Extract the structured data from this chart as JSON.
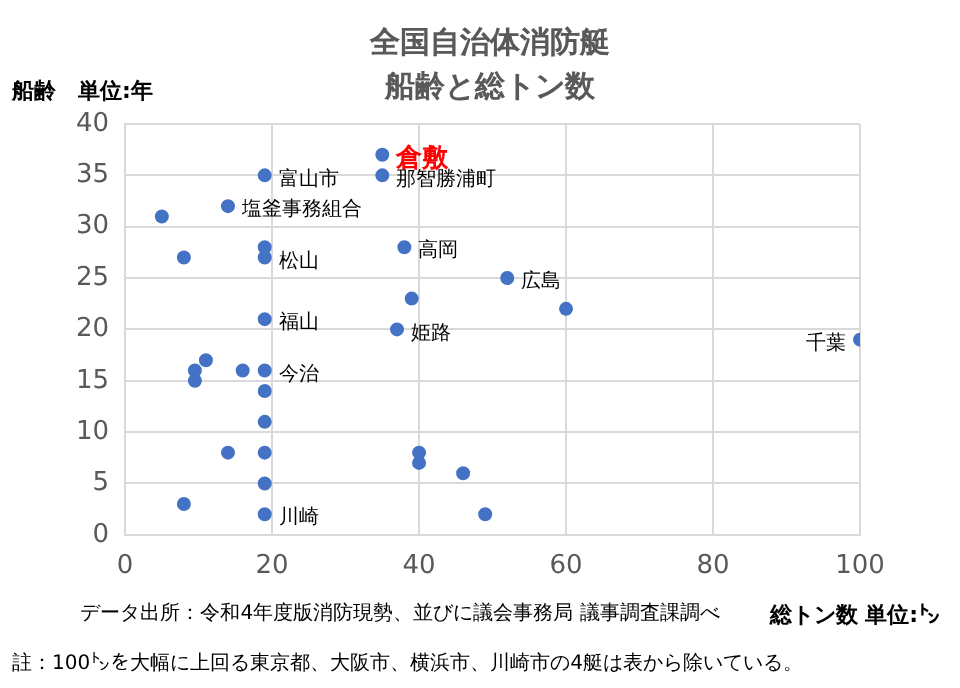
{
  "chart_data": {
    "type": "scatter",
    "title": "全国自治体消防艇",
    "subtitle": "船齢と総トン数",
    "xlabel": "総トン数 単位:㌧",
    "ylabel": "船齢　単位:年",
    "x": [
      5,
      8,
      14,
      19,
      19,
      19,
      19,
      19,
      19,
      19,
      19,
      19,
      19,
      11,
      9.5,
      9.5,
      16,
      14,
      8,
      35,
      35,
      38,
      39,
      37,
      40,
      40,
      46,
      49,
      52,
      60,
      100
    ],
    "series": [
      {
        "color": "#4472c4",
        "values": [
          31,
          27,
          32,
          35,
          28,
          27,
          21,
          16,
          14,
          11,
          8,
          5,
          2,
          17,
          16,
          15,
          16,
          8,
          3,
          37,
          35,
          28,
          23,
          20,
          8,
          7,
          6,
          2,
          25,
          22,
          19
        ]
      }
    ],
    "xlim": [
      0,
      100
    ],
    "xticks": [
      0,
      20,
      40,
      60,
      80,
      100
    ],
    "ylim": [
      0,
      40
    ],
    "yticks": [
      0,
      5,
      10,
      15,
      20,
      25,
      30,
      35,
      40
    ],
    "grid": true,
    "legend": false,
    "marker": "circle",
    "annotations": [
      {
        "text": "倉敷",
        "x": 35,
        "y": 37
      },
      {
        "text": "富山市",
        "x": 19,
        "y": 35
      },
      {
        "text": "那智勝浦町",
        "x": 35,
        "y": 35
      },
      {
        "text": "塩釜事務組合",
        "x": 14,
        "y": 32
      },
      {
        "text": "松山",
        "x": 19,
        "y": 27
      },
      {
        "text": "高岡",
        "x": 38,
        "y": 28
      },
      {
        "text": "広島",
        "x": 52,
        "y": 25
      },
      {
        "text": "福山",
        "x": 19,
        "y": 21
      },
      {
        "text": "姫路",
        "x": 37,
        "y": 20
      },
      {
        "text": "千葉",
        "x": 100,
        "y": 19
      },
      {
        "text": "今治",
        "x": 19,
        "y": 16
      },
      {
        "text": "川崎",
        "x": 19,
        "y": 2
      },
      "データ出所：令和4年度版消防現勢、並びに議会事務局 議事調査課調べ",
      "註：100㌧を大幅に上回る東京都、大阪市、横浜市、川崎市の4艇は表から除いている。"
    ]
  }
}
